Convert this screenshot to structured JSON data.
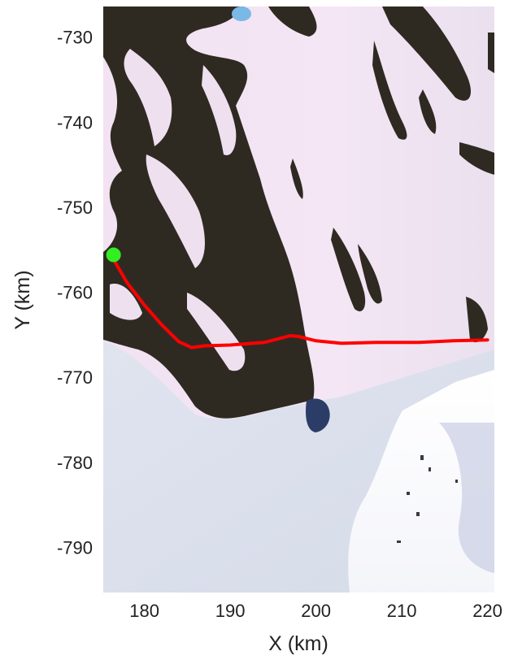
{
  "chart_data": {
    "type": "map",
    "xlabel": "X (km)",
    "ylabel": "Y (km)",
    "xlim": [
      175.2,
      220.8
    ],
    "ylim": [
      -795.3,
      -726.4
    ],
    "xticks": [
      180,
      190,
      200,
      210,
      220
    ],
    "yticks": [
      -730,
      -740,
      -750,
      -760,
      -770,
      -780,
      -790
    ],
    "xtick_labels": [
      "180",
      "190",
      "200",
      "210",
      "220"
    ],
    "ytick_labels": [
      "-730",
      "-740",
      "-750",
      "-760",
      "-770",
      "-780",
      "-790"
    ],
    "grid": false,
    "background": "satellite imagery (rock outcrops and ice)",
    "track": {
      "color": "#ff0000",
      "x": [
        176.6,
        178.0,
        180.0,
        182.0,
        184.0,
        185.5,
        187.0,
        190.0,
        194.0,
        197.0,
        198.0,
        200.0,
        203.0,
        207.0,
        212.0,
        216.0,
        220.0
      ],
      "y": [
        -756.5,
        -758.9,
        -761.5,
        -763.8,
        -765.8,
        -766.5,
        -766.3,
        -766.2,
        -765.9,
        -765.1,
        -765.2,
        -765.7,
        -766.0,
        -765.9,
        -765.9,
        -765.7,
        -765.6
      ]
    },
    "start_marker": {
      "color": "#33ee22",
      "x": 176.4,
      "y": -755.6
    }
  }
}
